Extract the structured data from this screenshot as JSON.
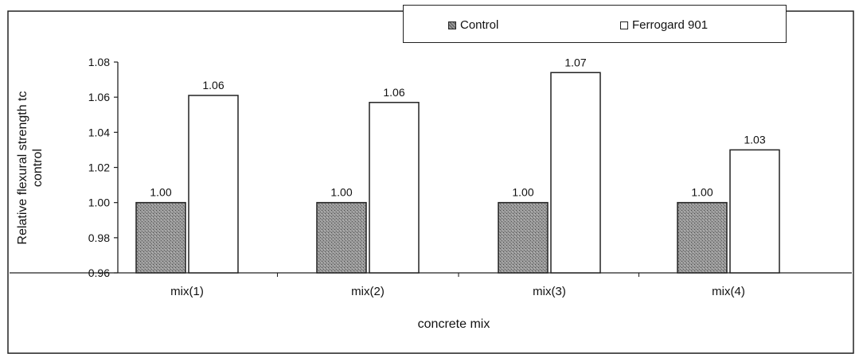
{
  "chart_data": {
    "type": "bar",
    "title": "",
    "xlabel": "concrete mix",
    "ylabel": "Relative flexural strength to control",
    "ylabel_lines": [
      "Relative flexural strength tc",
      "control"
    ],
    "categories": [
      "mix(1)",
      "mix(2)",
      "mix(3)",
      "mix(4)"
    ],
    "series": [
      {
        "name": "Control",
        "values": [
          1.0,
          1.0,
          1.0,
          1.0
        ],
        "labels": [
          "1.00",
          "1.00",
          "1.00",
          "1.00"
        ],
        "color": "#8c8c8c"
      },
      {
        "name": "Ferrogard 901",
        "values": [
          1.061,
          1.057,
          1.074,
          1.03
        ],
        "labels": [
          "1.06",
          "1.06",
          "1.07",
          "1.03"
        ],
        "color": "#ffffff"
      }
    ],
    "ylim": [
      0.96,
      1.08
    ],
    "yticks": [
      "0.96",
      "0.98",
      "1.00",
      "1.02",
      "1.04",
      "1.06",
      "1.08"
    ],
    "grid": false,
    "legend_position": "top-right"
  },
  "legend": {
    "control_label": "Control",
    "ferro_label": "Ferrogard 901"
  }
}
